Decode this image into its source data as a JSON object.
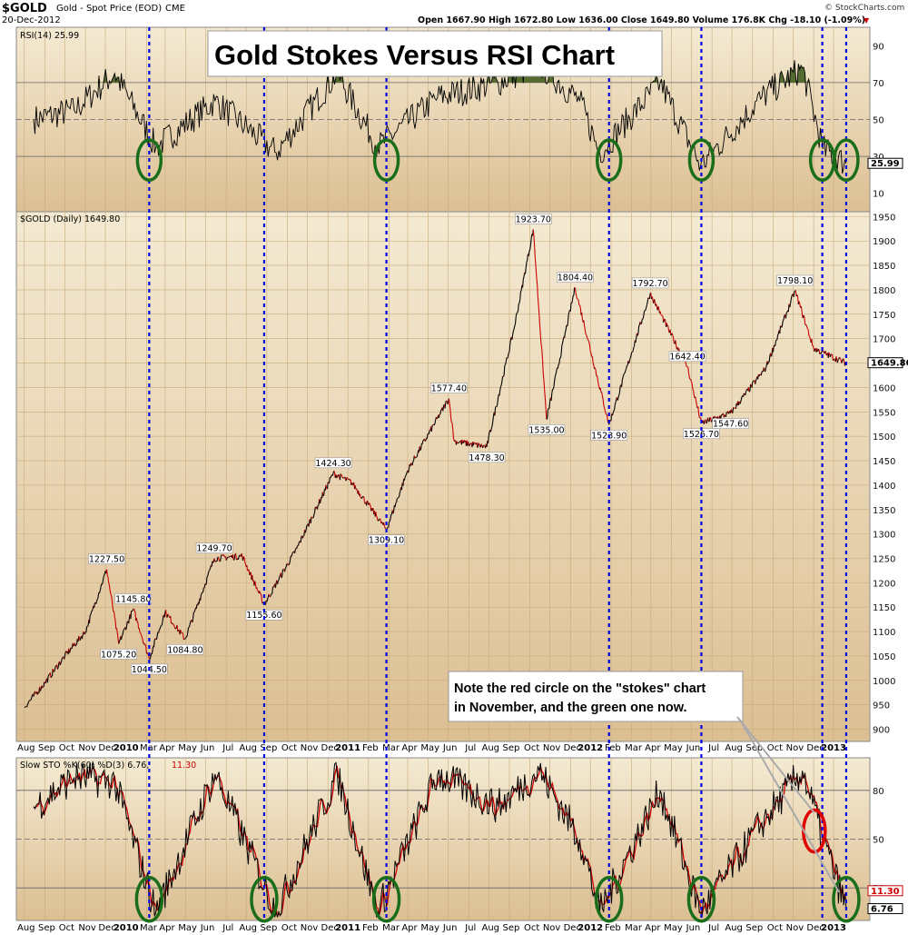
{
  "header": {
    "symbol": "$GOLD",
    "description": "Gold - Spot Price (EOD)",
    "exchange": "CME",
    "date": "20-Dec-2012",
    "quote": "Open 1667.90  High 1672.80  Low 1636.00  Close 1649.80  Volume 176.8K  Chg -18.10 (-1.09%)",
    "chg_marker": "▼",
    "watermark": "© StockCharts.com"
  },
  "title_box": "Gold Stokes Versus RSI Chart",
  "note_box": {
    "line1": "Note the red circle on the \"stokes\" chart",
    "line2": "in November, and the green one now."
  },
  "colors": {
    "panel_top": "#f4ead2",
    "panel_bottom": "#d9b889",
    "grid": "#c8aa7c",
    "price_line": "#000000",
    "price_down": "#cc0000",
    "rsi_fill": "#556b2f",
    "sto_k": "#000000",
    "sto_d": "#cc0000",
    "dashed_line": "#0000dd",
    "green_circle": "#1a6e1a",
    "red_circle": "#e00000"
  },
  "chart_data": [
    {
      "type": "line",
      "title": "RSI(14) 25.99",
      "y_ticks": [
        10,
        30,
        50,
        70,
        90
      ],
      "ylim": [
        0,
        100
      ],
      "reference_lines": [
        30,
        50,
        70
      ],
      "last_value": "25.99",
      "x": [
        "2009-08",
        "2009-10",
        "2009-12",
        "2010-02",
        "2010-05",
        "2010-08",
        "2010-11",
        "2011-01",
        "2011-04",
        "2011-07",
        "2011-09",
        "2011-11",
        "2011-12",
        "2012-03",
        "2012-05",
        "2012-08",
        "2012-10",
        "2012-11",
        "2012-12"
      ],
      "values": [
        50,
        55,
        75,
        35,
        60,
        32,
        75,
        35,
        62,
        70,
        80,
        60,
        32,
        70,
        25,
        62,
        78,
        34,
        26
      ]
    },
    {
      "type": "line",
      "title": "$GOLD (Daily) 1649.80",
      "y_ticks": [
        900,
        950,
        1000,
        1050,
        1100,
        1150,
        1200,
        1250,
        1300,
        1350,
        1400,
        1450,
        1500,
        1550,
        1600,
        1650,
        1700,
        1750,
        1800,
        1850,
        1900,
        1950
      ],
      "ylim": [
        875,
        1960
      ],
      "last_value": "1649.80",
      "x_labels": [
        "Aug",
        "Sep",
        "Oct",
        "Nov",
        "Dec",
        "2010",
        "Mar",
        "Apr",
        "May",
        "Jun",
        "Jul",
        "Aug",
        "Sep",
        "Oct",
        "Nov",
        "Dec",
        "2011",
        "Feb",
        "Mar",
        "Apr",
        "May",
        "Jun",
        "Jul",
        "Aug",
        "Sep",
        "Oct",
        "Nov",
        "Dec",
        "2012",
        "Feb",
        "Mar",
        "Apr",
        "May",
        "Jun",
        "Jul",
        "Aug",
        "Sep",
        "Oct",
        "Nov",
        "Dec",
        "2013"
      ],
      "points": [
        {
          "t": "2009-08-01",
          "v": 945
        },
        {
          "t": "2009-09-01",
          "v": 995
        },
        {
          "t": "2009-10-01",
          "v": 1050
        },
        {
          "t": "2009-11-01",
          "v": 1100
        },
        {
          "t": "2009-12-03",
          "v": 1227.5
        },
        {
          "t": "2009-12-21",
          "v": 1075.2
        },
        {
          "t": "2010-01-12",
          "v": 1145.8
        },
        {
          "t": "2010-02-05",
          "v": 1044.5
        },
        {
          "t": "2010-03-01",
          "v": 1140
        },
        {
          "t": "2010-03-31",
          "v": 1084.8
        },
        {
          "t": "2010-05-14",
          "v": 1249.7
        },
        {
          "t": "2010-06-25",
          "v": 1255
        },
        {
          "t": "2010-07-28",
          "v": 1155.6
        },
        {
          "t": "2010-09-15",
          "v": 1270
        },
        {
          "t": "2010-11-09",
          "v": 1424.3
        },
        {
          "t": "2010-12-07",
          "v": 1405
        },
        {
          "t": "2011-01-28",
          "v": 1309.1
        },
        {
          "t": "2011-03-01",
          "v": 1430
        },
        {
          "t": "2011-05-02",
          "v": 1577.4
        },
        {
          "t": "2011-05-10",
          "v": 1490
        },
        {
          "t": "2011-06-28",
          "v": 1478.3
        },
        {
          "t": "2011-08-08",
          "v": 1720
        },
        {
          "t": "2011-09-06",
          "v": 1923.7
        },
        {
          "t": "2011-09-26",
          "v": 1535
        },
        {
          "t": "2011-11-08",
          "v": 1804.4
        },
        {
          "t": "2011-12-29",
          "v": 1523.9
        },
        {
          "t": "2012-02-29",
          "v": 1792.7
        },
        {
          "t": "2012-04-25",
          "v": 1642.4
        },
        {
          "t": "2012-05-16",
          "v": 1526.7
        },
        {
          "t": "2012-06-29",
          "v": 1547.6
        },
        {
          "t": "2012-08-21",
          "v": 1640
        },
        {
          "t": "2012-10-04",
          "v": 1798.1
        },
        {
          "t": "2012-11-01",
          "v": 1680
        },
        {
          "t": "2012-12-20",
          "v": 1649.8
        }
      ],
      "annotations": [
        {
          "label": "1227.50",
          "t": "2009-12-03",
          "v": 1227.5,
          "pos": "above"
        },
        {
          "label": "1075.20",
          "t": "2009-12-21",
          "v": 1075.2,
          "pos": "below"
        },
        {
          "label": "1145.80",
          "t": "2010-01-12",
          "v": 1145.8,
          "pos": "above"
        },
        {
          "label": "1044.50",
          "t": "2010-02-05",
          "v": 1044.5,
          "pos": "below"
        },
        {
          "label": "1084.80",
          "t": "2010-03-31",
          "v": 1084.8,
          "pos": "below"
        },
        {
          "label": "1249.70",
          "t": "2010-05-14",
          "v": 1249.7,
          "pos": "above"
        },
        {
          "label": "1155.60",
          "t": "2010-07-28",
          "v": 1155.6,
          "pos": "below"
        },
        {
          "label": "1424.30",
          "t": "2010-11-09",
          "v": 1424.3,
          "pos": "above"
        },
        {
          "label": "1309.10",
          "t": "2011-01-28",
          "v": 1309.1,
          "pos": "below"
        },
        {
          "label": "1577.40",
          "t": "2011-05-02",
          "v": 1577.4,
          "pos": "above"
        },
        {
          "label": "1478.30",
          "t": "2011-06-28",
          "v": 1478.3,
          "pos": "below"
        },
        {
          "label": "1923.70",
          "t": "2011-09-06",
          "v": 1923.7,
          "pos": "above"
        },
        {
          "label": "1535.00",
          "t": "2011-09-26",
          "v": 1535,
          "pos": "below"
        },
        {
          "label": "1804.40",
          "t": "2011-11-08",
          "v": 1804.4,
          "pos": "above"
        },
        {
          "label": "1523.90",
          "t": "2011-12-29",
          "v": 1523.9,
          "pos": "below"
        },
        {
          "label": "1792.70",
          "t": "2012-02-29",
          "v": 1792.7,
          "pos": "above"
        },
        {
          "label": "1642.40",
          "t": "2012-04-25",
          "v": 1642.4,
          "pos": "above"
        },
        {
          "label": "1526.70",
          "t": "2012-05-16",
          "v": 1526.7,
          "pos": "below"
        },
        {
          "label": "1547.60",
          "t": "2012-06-29",
          "v": 1547.6,
          "pos": "below"
        },
        {
          "label": "1798.10",
          "t": "2012-10-04",
          "v": 1798.1,
          "pos": "above"
        }
      ]
    },
    {
      "type": "line",
      "title": "Slow STO %K(60) %D(3) 6.76, 11.30",
      "title_k_part": "Slow STO %K(60) %D(3) 6.76,",
      "title_d_part": "11.30",
      "y_ticks": [
        20,
        50,
        80
      ],
      "ylim": [
        0,
        100
      ],
      "last_k": "6.76",
      "last_d": "11.30",
      "x": [
        "2009-08",
        "2009-10",
        "2009-12",
        "2010-02",
        "2010-05",
        "2010-08",
        "2010-11",
        "2011-01",
        "2011-04",
        "2011-07",
        "2011-09",
        "2011-11",
        "2011-12",
        "2012-03",
        "2012-05",
        "2012-08",
        "2012-10",
        "2012-11",
        "2012-12"
      ],
      "values": [
        70,
        88,
        85,
        5,
        90,
        5,
        90,
        5,
        90,
        70,
        92,
        50,
        5,
        80,
        5,
        60,
        92,
        50,
        7
      ]
    }
  ],
  "markers": {
    "vertical_dates": [
      "2010-02-05",
      "2010-07-28",
      "2011-01-28",
      "2011-12-29",
      "2012-05-16",
      "2012-11-14",
      "2012-12-20"
    ],
    "rsi_circles": [
      "2010-02-05",
      "2011-01-28",
      "2011-12-29",
      "2012-05-16",
      "2012-11-14",
      "2012-12-20"
    ],
    "sto_green_circles": [
      "2010-02-05",
      "2010-07-28",
      "2011-01-28",
      "2011-12-29",
      "2012-05-16",
      "2012-12-20"
    ],
    "sto_red_circle": "2012-11-02"
  }
}
